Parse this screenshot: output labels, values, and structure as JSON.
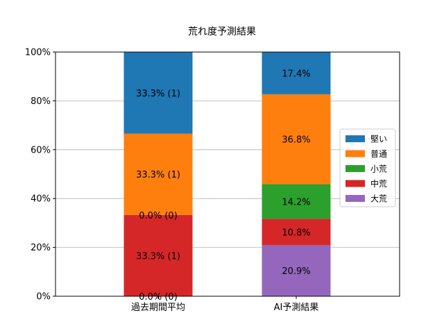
{
  "chart_data": {
    "type": "bar",
    "stacked": true,
    "title": "荒れ度予測結果",
    "categories": [
      "過去期間平均",
      "AI予測結果"
    ],
    "ylim": [
      0,
      100
    ],
    "yticks": [
      "0%",
      "20%",
      "40%",
      "60%",
      "80%",
      "100%"
    ],
    "ytick_values": [
      0,
      20,
      40,
      60,
      80,
      100
    ],
    "grid": "horizontal",
    "legend_position": "right",
    "series": [
      {
        "name": "大荒",
        "color": "#9467bd",
        "values": [
          0.0,
          20.9
        ],
        "labels": [
          "0.0% (0)",
          "20.9%"
        ]
      },
      {
        "name": "中荒",
        "color": "#d62728",
        "values": [
          33.3,
          10.8
        ],
        "labels": [
          "33.3% (1)",
          "10.8%"
        ]
      },
      {
        "name": "小荒",
        "color": "#2ca02c",
        "values": [
          0.0,
          14.2
        ],
        "labels": [
          "0.0% (0)",
          "14.2%"
        ]
      },
      {
        "name": "普通",
        "color": "#ff7f0e",
        "values": [
          33.3,
          36.8
        ],
        "labels": [
          "33.3% (1)",
          "36.8%"
        ]
      },
      {
        "name": "堅い",
        "color": "#1f77b4",
        "values": [
          33.3,
          17.4
        ],
        "labels": [
          "33.3% (1)",
          "17.4%"
        ]
      }
    ],
    "legend_order": [
      "堅い",
      "普通",
      "小荒",
      "中荒",
      "大荒"
    ]
  }
}
